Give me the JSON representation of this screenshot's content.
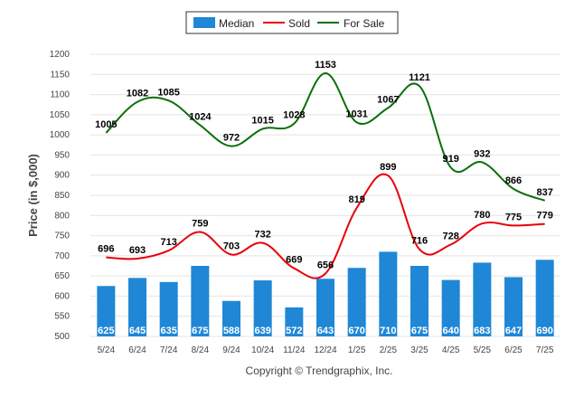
{
  "chart_data": {
    "type": "bar",
    "categories": [
      "5/24",
      "6/24",
      "7/24",
      "8/24",
      "9/24",
      "10/24",
      "11/24",
      "12/24",
      "1/25",
      "2/25",
      "3/25",
      "4/25",
      "5/25",
      "6/25",
      "7/25"
    ],
    "series": [
      {
        "name": "Median",
        "kind": "bar",
        "color": "#1f87d6",
        "values": [
          625,
          645,
          635,
          675,
          588,
          639,
          572,
          643,
          670,
          710,
          675,
          640,
          683,
          647,
          690
        ]
      },
      {
        "name": "Sold",
        "kind": "line",
        "color": "#e8000b",
        "values": [
          696,
          693,
          713,
          759,
          703,
          732,
          669,
          656,
          819,
          899,
          716,
          728,
          780,
          775,
          779
        ]
      },
      {
        "name": "For Sale",
        "kind": "line",
        "color": "#0b6e0b",
        "values": [
          1005,
          1082,
          1085,
          1024,
          972,
          1015,
          1028,
          1153,
          1031,
          1067,
          1121,
          919,
          932,
          866,
          837
        ]
      }
    ],
    "ylabel": "Price (in $,000)",
    "ylim": [
      500,
      1200
    ],
    "yticks": [
      500,
      550,
      600,
      650,
      700,
      750,
      800,
      850,
      900,
      950,
      1000,
      1050,
      1100,
      1150,
      1200
    ],
    "grid": true,
    "legend_position": "top-center"
  },
  "footer": {
    "copyright": "Copyright © Trendgraphix, Inc."
  }
}
